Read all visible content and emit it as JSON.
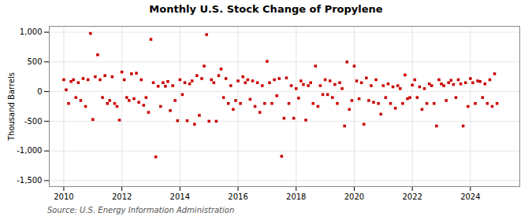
{
  "chart_data": {
    "type": "scatter",
    "title": "Monthly U.S. Stock Change of Propylene",
    "ylabel": "Thousand Barrels",
    "annotations": [
      "Source: U.S. Energy Information Administration"
    ],
    "color": "#CC0000",
    "marker": "square",
    "grid": true,
    "xlim": [
      2009.5,
      2025.7
    ],
    "xticks": [
      2010,
      2012,
      2014,
      2016,
      2018,
      2020,
      2022,
      2024
    ],
    "ylim": [
      -1600,
      1100
    ],
    "yticks": [
      {
        "value": -1500,
        "label": "-1,500"
      },
      {
        "value": -1000,
        "label": "-1,000"
      },
      -500,
      0,
      500,
      {
        "value": 1000,
        "label": "1,000"
      }
    ],
    "x": [
      2010.0,
      2010.083,
      2010.167,
      2010.25,
      2010.333,
      2010.417,
      2010.5,
      2010.583,
      2010.667,
      2010.75,
      2010.833,
      2010.917,
      2011.0,
      2011.083,
      2011.167,
      2011.25,
      2011.333,
      2011.417,
      2011.5,
      2011.583,
      2011.667,
      2011.75,
      2011.833,
      2011.917,
      2012.0,
      2012.083,
      2012.167,
      2012.25,
      2012.333,
      2012.417,
      2012.5,
      2012.583,
      2012.667,
      2012.75,
      2012.833,
      2012.917,
      2013.0,
      2013.083,
      2013.167,
      2013.25,
      2013.333,
      2013.417,
      2013.5,
      2013.583,
      2013.667,
      2013.75,
      2013.833,
      2013.917,
      2014.0,
      2014.083,
      2014.167,
      2014.25,
      2014.333,
      2014.417,
      2014.5,
      2014.583,
      2014.667,
      2014.75,
      2014.833,
      2014.917,
      2015.0,
      2015.083,
      2015.167,
      2015.25,
      2015.333,
      2015.417,
      2015.5,
      2015.583,
      2015.667,
      2015.75,
      2015.833,
      2015.917,
      2016.0,
      2016.083,
      2016.167,
      2016.25,
      2016.333,
      2016.417,
      2016.5,
      2016.583,
      2016.667,
      2016.75,
      2016.833,
      2016.917,
      2017.0,
      2017.083,
      2017.167,
      2017.25,
      2017.333,
      2017.417,
      2017.5,
      2017.583,
      2017.667,
      2017.75,
      2017.833,
      2017.917,
      2018.0,
      2018.083,
      2018.167,
      2018.25,
      2018.333,
      2018.417,
      2018.5,
      2018.583,
      2018.667,
      2018.75,
      2018.833,
      2018.917,
      2019.0,
      2019.083,
      2019.167,
      2019.25,
      2019.333,
      2019.417,
      2019.5,
      2019.583,
      2019.667,
      2019.75,
      2019.833,
      2019.917,
      2020.0,
      2020.083,
      2020.167,
      2020.25,
      2020.333,
      2020.417,
      2020.5,
      2020.583,
      2020.667,
      2020.75,
      2020.833,
      2020.917,
      2021.0,
      2021.083,
      2021.167,
      2021.25,
      2021.333,
      2021.417,
      2021.5,
      2021.583,
      2021.667,
      2021.75,
      2021.833,
      2021.917,
      2022.0,
      2022.083,
      2022.167,
      2022.25,
      2022.333,
      2022.417,
      2022.5,
      2022.583,
      2022.667,
      2022.75,
      2022.833,
      2022.917,
      2023.0,
      2023.083,
      2023.167,
      2023.25,
      2023.333,
      2023.417,
      2023.5,
      2023.583,
      2023.667,
      2023.75,
      2023.833,
      2023.917,
      2024.0,
      2024.083,
      2024.167,
      2024.25,
      2024.333,
      2024.417,
      2024.5,
      2024.583,
      2024.667,
      2024.75,
      2024.833,
      2024.917
    ],
    "values": [
      200,
      30,
      -200,
      170,
      200,
      -100,
      150,
      -150,
      220,
      -250,
      200,
      980,
      -470,
      250,
      620,
      200,
      -100,
      270,
      -200,
      -150,
      250,
      -200,
      -250,
      -480,
      330,
      200,
      -100,
      -150,
      300,
      -120,
      310,
      -180,
      200,
      -230,
      -100,
      -350,
      880,
      150,
      -1100,
      90,
      -250,
      150,
      90,
      170,
      -320,
      100,
      -150,
      -490,
      200,
      -50,
      150,
      -490,
      130,
      180,
      -550,
      270,
      -400,
      220,
      430,
      960,
      -500,
      200,
      150,
      -500,
      270,
      380,
      -100,
      220,
      -200,
      100,
      -300,
      -150,
      180,
      -200,
      250,
      150,
      200,
      -130,
      180,
      -250,
      150,
      -350,
      100,
      -200,
      510,
      150,
      -200,
      200,
      -70,
      220,
      -1090,
      -450,
      230,
      -200,
      100,
      -450,
      50,
      -110,
      180,
      120,
      -480,
      100,
      150,
      -200,
      430,
      -250,
      100,
      -50,
      200,
      -50,
      180,
      -100,
      120,
      -200,
      150,
      50,
      -580,
      500,
      -300,
      -150,
      430,
      180,
      -120,
      150,
      -550,
      230,
      -150,
      100,
      -180,
      200,
      -200,
      -380,
      100,
      -100,
      130,
      -200,
      80,
      -280,
      100,
      50,
      -200,
      280,
      -120,
      -100,
      110,
      200,
      -100,
      80,
      -300,
      50,
      -200,
      130,
      100,
      -200,
      -580,
      200,
      130,
      100,
      -150,
      150,
      190,
      120,
      -100,
      200,
      130,
      -580,
      150,
      -250,
      220,
      150,
      -200,
      180,
      170,
      -100,
      130,
      -200,
      200,
      -250,
      300,
      -200
    ]
  }
}
